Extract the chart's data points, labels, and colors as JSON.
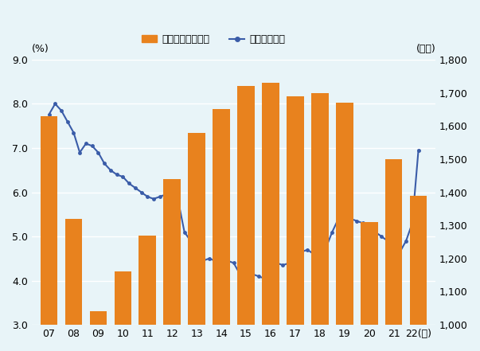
{
  "years": [
    2007,
    2008,
    2009,
    2010,
    2011,
    2012,
    2013,
    2014,
    2015,
    2016,
    2017,
    2018,
    2019,
    2020,
    2021,
    2022
  ],
  "bar_values": [
    1630,
    1320,
    1040,
    1160,
    1270,
    1440,
    1580,
    1650,
    1720,
    1730,
    1690,
    1700,
    1670,
    1310,
    1500,
    1390
  ],
  "interest_rate_x": [
    2007.0,
    2007.25,
    2007.5,
    2007.75,
    2008.0,
    2008.25,
    2008.5,
    2008.75,
    2009.0,
    2009.25,
    2009.5,
    2009.75,
    2010.0,
    2010.25,
    2010.5,
    2010.75,
    2011.0,
    2011.25,
    2011.5,
    2011.75,
    2012.0,
    2012.25,
    2012.5,
    2012.75,
    2013.0,
    2013.25,
    2013.5,
    2013.75,
    2014.0,
    2014.25,
    2014.5,
    2014.75,
    2015.0,
    2015.25,
    2015.5,
    2015.75,
    2016.0,
    2016.25,
    2016.5,
    2016.75,
    2017.0,
    2017.25,
    2017.5,
    2017.75,
    2018.0,
    2018.25,
    2018.5,
    2018.75,
    2019.0,
    2019.25,
    2019.5,
    2019.75,
    2020.0,
    2020.25,
    2020.5,
    2020.75,
    2021.0,
    2021.25,
    2021.5,
    2021.75,
    2022.0
  ],
  "interest_rate_y": [
    7.76,
    8.0,
    7.85,
    7.6,
    7.35,
    6.9,
    7.1,
    7.05,
    6.9,
    6.65,
    6.5,
    6.4,
    6.35,
    6.2,
    6.1,
    6.0,
    5.9,
    5.85,
    5.9,
    5.95,
    5.9,
    5.8,
    5.1,
    4.9,
    4.75,
    4.45,
    4.5,
    4.45,
    4.5,
    4.45,
    4.4,
    4.15,
    4.1,
    4.15,
    4.1,
    4.05,
    4.3,
    4.4,
    4.35,
    4.4,
    4.55,
    4.65,
    4.7,
    4.6,
    4.65,
    4.75,
    5.1,
    5.4,
    5.45,
    5.4,
    5.35,
    5.3,
    5.25,
    5.1,
    5.0,
    4.9,
    4.85,
    4.65,
    4.9,
    5.3,
    6.95
  ],
  "bar_color": "#E8821E",
  "line_color": "#3A5CA8",
  "background_color": "#E8F4F8",
  "left_ylabel": "(%)",
  "right_ylabel": "(万台)",
  "left_ylim": [
    3.0,
    9.0
  ],
  "right_ylim": [
    1000,
    1800
  ],
  "left_yticks": [
    3.0,
    4.0,
    5.0,
    6.0,
    7.0,
    8.0,
    9.0
  ],
  "right_yticks": [
    1000,
    1100,
    1200,
    1300,
    1400,
    1500,
    1600,
    1700,
    1800
  ],
  "legend_bar_label": "販売台数（右軸）",
  "legend_line_label": "金利（左軸）",
  "xlabel_suffix": "(年)"
}
